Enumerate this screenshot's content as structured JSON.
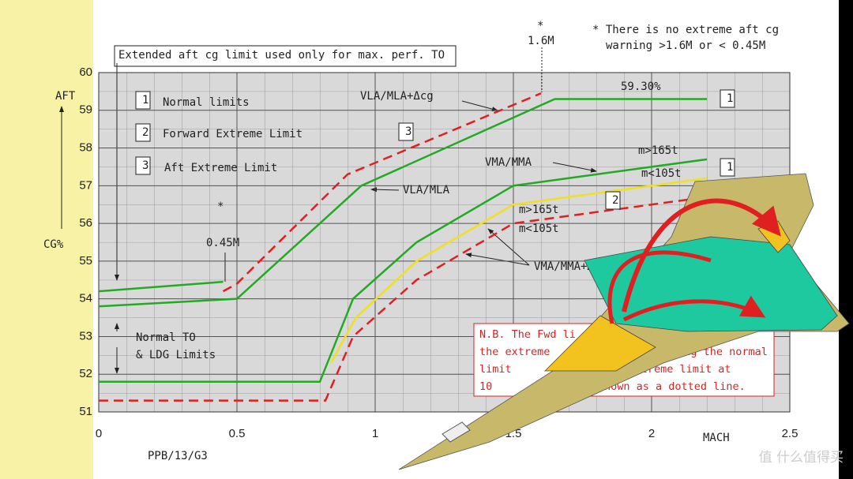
{
  "chart_data": {
    "type": "line",
    "xlim": [
      0,
      2.5
    ],
    "xticks": [
      0,
      0.5,
      1,
      1.5,
      2,
      2.5
    ],
    "ylim": [
      51,
      60
    ],
    "yticks": [
      51,
      52,
      53,
      54,
      55,
      56,
      57,
      58,
      59,
      60
    ],
    "grid": true,
    "series": [
      {
        "color": "#22aa22",
        "dashed": false,
        "x": [
          0,
          0.45
        ],
        "values": [
          54.2,
          54.45
        ]
      },
      {
        "color": "#22aa22",
        "dashed": false,
        "x": [
          0,
          0.5,
          0.95,
          1.65,
          2.2
        ],
        "values": [
          53.8,
          54.0,
          57.0,
          59.3,
          59.3
        ]
      },
      {
        "color": "#e02020",
        "dashed": true,
        "x": [
          0.45,
          0.5,
          0.9,
          1.6
        ],
        "values": [
          54.2,
          54.4,
          57.3,
          59.45
        ]
      },
      {
        "color": "#22aa22",
        "dashed": false,
        "x": [
          0,
          0.8,
          0.92,
          1.15,
          1.5,
          2.2
        ],
        "values": [
          51.8,
          51.8,
          54.0,
          55.5,
          57.0,
          57.7
        ]
      },
      {
        "color": "#f0e020",
        "dashed": false,
        "x": [
          0.84,
          0.93,
          1.15,
          1.5,
          2.2
        ],
        "values": [
          52.3,
          53.5,
          55.0,
          56.5,
          57.2
        ]
      },
      {
        "color": "#e02020",
        "dashed": true,
        "x": [
          0,
          0.82,
          0.92,
          1.15,
          1.5,
          2.2
        ],
        "values": [
          51.3,
          51.3,
          53.0,
          54.5,
          56.0,
          56.7
        ]
      }
    ],
    "annotations": [
      "Extended aft cg limit used only for max. perf. TO",
      "*",
      "1.6M",
      "* There is no extreme aft cg",
      "warning >1.6M or < 0.45M",
      "AFT",
      "CG%",
      "1",
      "Normal limits",
      "2",
      "Forward Extreme Limit",
      "3",
      "Aft Extreme Limit",
      "VLA/MLA+Δcg",
      "59.30%",
      "1",
      "3",
      "VMA/MMA",
      "m>165t",
      "m<105t",
      "1",
      "VLA/MLA",
      "2",
      "m>165t",
      "m<105t",
      "*",
      "0.45M",
      "VMA/MMA+Δcg",
      "Normal TO",
      "& LDG Limits",
      "MACH",
      "PPB/13/G3"
    ],
    "note": [
      "N.B. The Fwd  li",
      "the extreme",
      "eing the normal",
      "limit",
      "the extreme limit at",
      "10",
      "hown as a dotted line."
    ],
    "watermark": "值 什么值得买"
  }
}
